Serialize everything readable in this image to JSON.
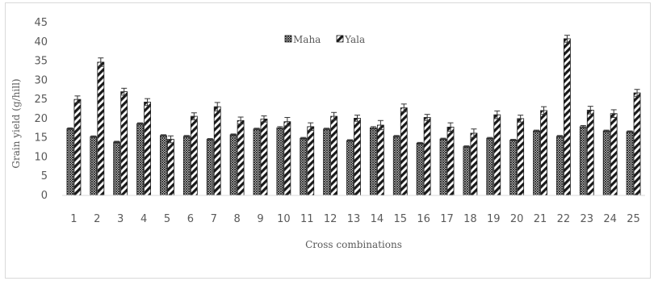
{
  "chart_data": {
    "type": "bar",
    "title": "",
    "xlabel": "Cross combinations",
    "ylabel": "Grain yield (g/hill)",
    "ylim": [
      0,
      45
    ],
    "yticks": [
      0,
      5,
      10,
      15,
      20,
      25,
      30,
      35,
      40,
      45
    ],
    "grid": false,
    "legend_position": "top-center",
    "categories": [
      "1",
      "2",
      "3",
      "4",
      "5",
      "6",
      "7",
      "8",
      "9",
      "10",
      "11",
      "12",
      "13",
      "14",
      "15",
      "16",
      "17",
      "18",
      "19",
      "20",
      "21",
      "22",
      "23",
      "24",
      "25"
    ],
    "series": [
      {
        "name": "Maha",
        "pattern": "crosshatch",
        "values": [
          17.4,
          15.3,
          13.9,
          18.7,
          15.6,
          15.4,
          14.6,
          15.8,
          17.3,
          17.6,
          14.9,
          17.3,
          14.3,
          17.6,
          15.4,
          13.6,
          14.7,
          12.7,
          14.9,
          14.4,
          16.8,
          15.4,
          17.9,
          16.8,
          16.6
        ],
        "error": [
          0.2,
          0.2,
          0.2,
          0.2,
          0.2,
          0.2,
          0.2,
          0.2,
          0.2,
          0.3,
          0.2,
          0.2,
          0.2,
          0.3,
          0.2,
          0.2,
          0.2,
          0.2,
          0.2,
          0.2,
          0.2,
          0.2,
          0.3,
          0.2,
          0.2
        ]
      },
      {
        "name": "Yala",
        "pattern": "diagonal",
        "values": [
          25.0,
          34.7,
          27.0,
          24.3,
          14.6,
          20.6,
          23.1,
          19.5,
          19.9,
          19.2,
          17.9,
          20.6,
          20.1,
          18.3,
          22.8,
          20.3,
          17.8,
          16.2,
          21.0,
          20.0,
          22.1,
          40.8,
          22.2,
          21.3,
          26.7
        ],
        "error": [
          0.9,
          1.1,
          0.9,
          0.9,
          0.9,
          0.9,
          1.1,
          0.9,
          0.8,
          1.1,
          1.0,
          1.0,
          0.8,
          1.2,
          1.0,
          0.8,
          1.1,
          1.1,
          1.0,
          0.9,
          1.0,
          0.9,
          1.0,
          1.0,
          0.9
        ]
      }
    ],
    "colors": {
      "bar_fill": "#1a1a1a",
      "error_bar": "#333333",
      "axis": "#d9d9d9",
      "text": "#595959"
    }
  }
}
